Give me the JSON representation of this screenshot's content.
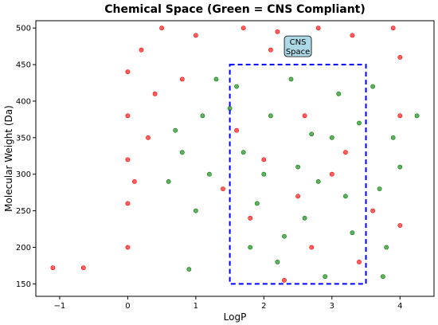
{
  "chart_data": {
    "type": "scatter",
    "title": "Chemical Space (Green = CNS Compliant)",
    "xlabel": "LogP",
    "ylabel": "Molecular Weight (Da)",
    "xlim": [
      -1.35,
      4.5
    ],
    "ylim": [
      133,
      510
    ],
    "x_ticks": [
      -1,
      0,
      1,
      2,
      3,
      4
    ],
    "y_ticks": [
      150,
      200,
      250,
      300,
      350,
      400,
      450,
      500
    ],
    "grid": false,
    "colors": {
      "compliant": "#008000",
      "non_compliant": "#ff0000",
      "region": "#0000ff",
      "annotation_bg": "#add8e6"
    },
    "cns_region": {
      "logp_min": 1.5,
      "logp_max": 3.5,
      "mw_min": 150,
      "mw_max": 450,
      "label_line1": "CNS",
      "label_line2": "Space",
      "label_x": 2.5,
      "label_y": 475
    },
    "series": [
      {
        "name": "",
        "color": "#008000",
        "points": [
          [
            1.6,
            420
          ],
          [
            2.1,
            380
          ],
          [
            2.5,
            310
          ],
          [
            3.0,
            350
          ],
          [
            2.8,
            290
          ],
          [
            1.9,
            260
          ],
          [
            3.3,
            220
          ],
          [
            2.2,
            180
          ],
          [
            1.7,
            330
          ],
          [
            3.1,
            410
          ],
          [
            2.6,
            240
          ],
          [
            2.0,
            300
          ],
          [
            3.4,
            370
          ],
          [
            1.8,
            200
          ],
          [
            2.9,
            160
          ],
          [
            2.4,
            430
          ],
          [
            3.2,
            270
          ],
          [
            1.5,
            390
          ],
          [
            2.7,
            355
          ],
          [
            2.3,
            215
          ],
          [
            0.8,
            330
          ],
          [
            1.2,
            300
          ],
          [
            3.7,
            280
          ],
          [
            3.9,
            350
          ],
          [
            4.25,
            380
          ],
          [
            1.0,
            250
          ],
          [
            0.6,
            290
          ],
          [
            3.8,
            200
          ],
          [
            1.1,
            380
          ],
          [
            3.6,
            420
          ],
          [
            0.9,
            170
          ],
          [
            4.0,
            310
          ],
          [
            1.3,
            430
          ],
          [
            3.75,
            160
          ],
          [
            0.7,
            360
          ]
        ]
      },
      {
        "name": "",
        "color": "#ff0000",
        "points": [
          [
            -1.1,
            172
          ],
          [
            -0.65,
            172
          ],
          [
            0.0,
            260
          ],
          [
            0.0,
            320
          ],
          [
            0.0,
            380
          ],
          [
            0.0,
            440
          ],
          [
            0.0,
            200
          ],
          [
            0.2,
            470
          ],
          [
            0.5,
            500
          ],
          [
            1.0,
            490
          ],
          [
            1.7,
            500
          ],
          [
            2.2,
            495
          ],
          [
            2.8,
            500
          ],
          [
            3.3,
            490
          ],
          [
            3.9,
            500
          ],
          [
            4.0,
            460
          ],
          [
            0.3,
            350
          ],
          [
            0.1,
            290
          ],
          [
            0.4,
            410
          ],
          [
            2.0,
            320
          ],
          [
            2.5,
            270
          ],
          [
            3.0,
            300
          ],
          [
            1.8,
            240
          ],
          [
            2.6,
            380
          ],
          [
            3.2,
            330
          ],
          [
            2.3,
            155
          ],
          [
            3.6,
            250
          ],
          [
            1.4,
            280
          ],
          [
            0.8,
            430
          ],
          [
            4.0,
            230
          ],
          [
            4.0,
            380
          ],
          [
            2.1,
            470
          ],
          [
            2.7,
            200
          ],
          [
            1.6,
            360
          ],
          [
            3.4,
            180
          ]
        ]
      }
    ]
  }
}
